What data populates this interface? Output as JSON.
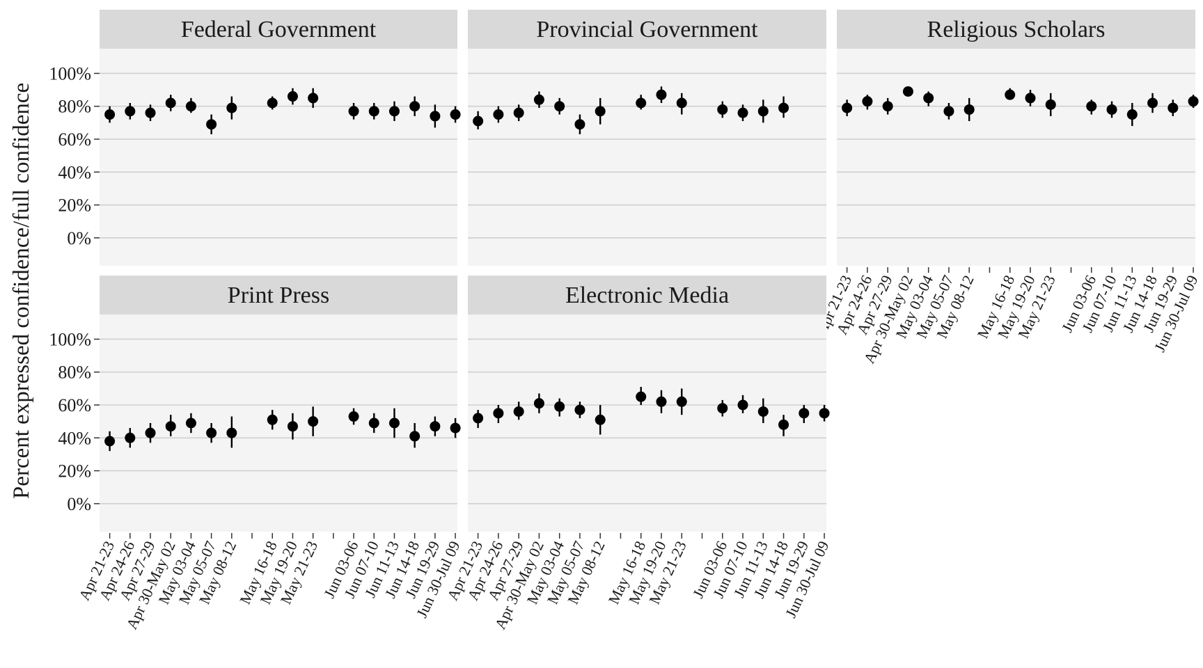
{
  "chart_data": {
    "type": "scatter",
    "ylabel": "Percent expressed confidence/full confidence",
    "xlabel": "",
    "yticks": [
      "0%",
      "20%",
      "40%",
      "60%",
      "80%",
      "100%"
    ],
    "ylim": [
      -17,
      115
    ],
    "x_slots": [
      "Apr 21-23",
      "Apr 24-26",
      "Apr 27-29",
      "Apr 30-May 02",
      "May 03-04",
      "May 05-07",
      "May 08-12",
      "",
      "May 16-18",
      "May 19-20",
      "May 21-23",
      "",
      "Jun 03-06",
      "Jun 07-10",
      "Jun 11-13",
      "Jun 14-18",
      "Jun 19-29",
      "Jun 30-Jul 09"
    ],
    "grid": true,
    "panels": [
      {
        "title": "Federal Government",
        "values": [
          75,
          77,
          76,
          82,
          80,
          69,
          79,
          null,
          82,
          86,
          85,
          null,
          77,
          77,
          77,
          80,
          74,
          75
        ],
        "lower": [
          70,
          72,
          71,
          77,
          76,
          63,
          72,
          null,
          78,
          81,
          79,
          null,
          72,
          72,
          71,
          74,
          67,
          70
        ],
        "upper": [
          80,
          82,
          81,
          87,
          85,
          75,
          86,
          null,
          86,
          91,
          91,
          null,
          82,
          82,
          83,
          86,
          81,
          80
        ]
      },
      {
        "title": "Provincial Government",
        "values": [
          71,
          75,
          76,
          84,
          80,
          69,
          77,
          null,
          82,
          87,
          82,
          null,
          78,
          76,
          77,
          79,
          null,
          null
        ],
        "lower": [
          66,
          70,
          71,
          79,
          75,
          63,
          69,
          null,
          78,
          82,
          75,
          null,
          73,
          71,
          70,
          73,
          null,
          null
        ],
        "upper": [
          77,
          80,
          81,
          89,
          85,
          75,
          85,
          null,
          87,
          92,
          88,
          null,
          83,
          81,
          84,
          86,
          null,
          null
        ]
      },
      {
        "title": "Religious Scholars",
        "values": [
          79,
          83,
          80,
          89,
          85,
          77,
          78,
          null,
          87,
          85,
          81,
          null,
          80,
          78,
          75,
          82,
          79,
          83
        ],
        "lower": [
          74,
          78,
          75,
          86,
          80,
          72,
          71,
          null,
          84,
          80,
          74,
          null,
          75,
          73,
          68,
          76,
          74,
          79
        ],
        "upper": [
          84,
          87,
          85,
          92,
          89,
          82,
          85,
          null,
          91,
          90,
          88,
          null,
          84,
          83,
          82,
          88,
          84,
          87
        ]
      },
      {
        "title": "Print Press",
        "values": [
          38,
          40,
          43,
          47,
          49,
          43,
          43,
          null,
          51,
          47,
          50,
          null,
          53,
          49,
          49,
          41,
          47,
          46
        ],
        "lower": [
          32,
          34,
          37,
          41,
          43,
          37,
          34,
          null,
          45,
          39,
          41,
          null,
          48,
          43,
          40,
          34,
          41,
          40
        ],
        "upper": [
          44,
          46,
          49,
          54,
          55,
          49,
          53,
          null,
          57,
          55,
          59,
          null,
          58,
          55,
          58,
          49,
          53,
          52
        ]
      },
      {
        "title": "Electronic Media",
        "values": [
          52,
          55,
          56,
          61,
          59,
          57,
          51,
          null,
          65,
          62,
          62,
          null,
          58,
          60,
          56,
          48,
          55,
          55
        ],
        "lower": [
          46,
          49,
          51,
          55,
          53,
          52,
          42,
          null,
          60,
          55,
          54,
          null,
          53,
          55,
          49,
          41,
          49,
          50
        ],
        "upper": [
          57,
          60,
          62,
          67,
          64,
          62,
          60,
          null,
          71,
          69,
          70,
          null,
          63,
          66,
          64,
          54,
          60,
          60
        ]
      }
    ]
  }
}
